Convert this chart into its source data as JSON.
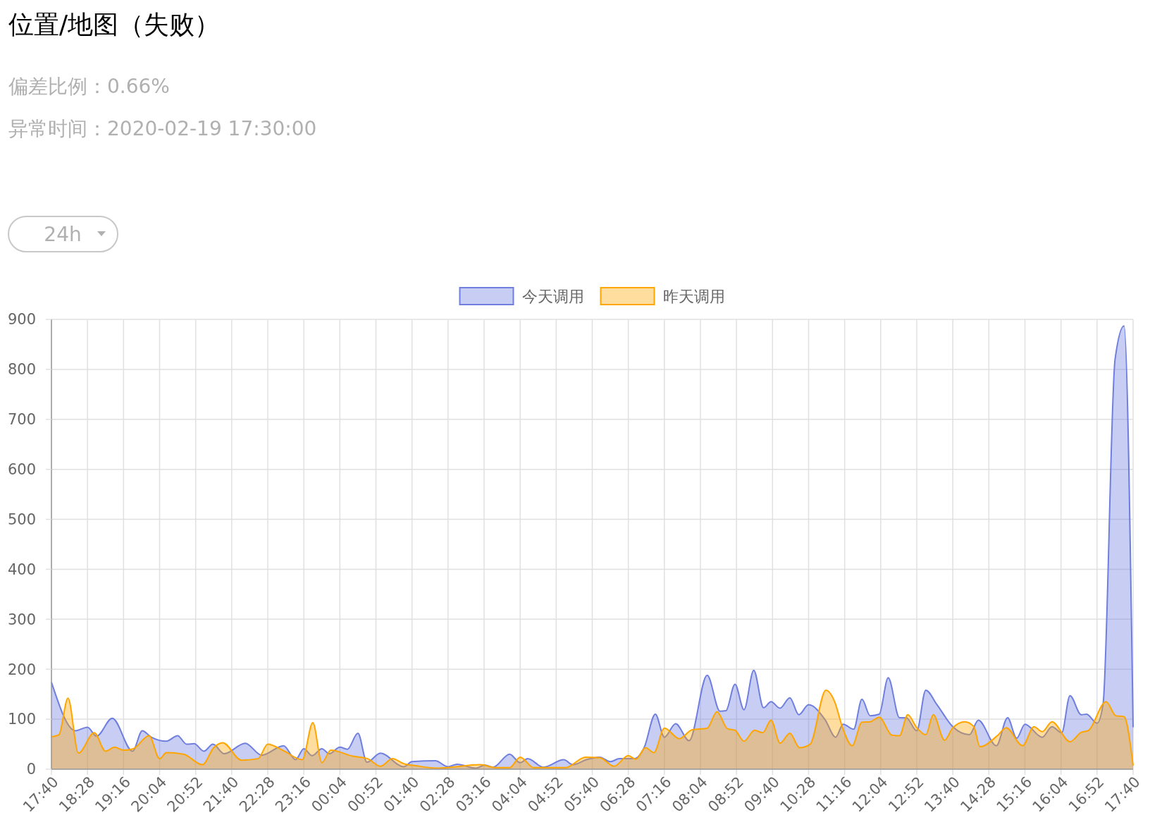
{
  "chart_data": {
    "type": "area",
    "title": "位置/地图（失败）",
    "subtitle": "偏差比例：0.66%",
    "annotations": [
      "异常时间：2020-02-19 17:30:00",
      "24h"
    ],
    "xlim": [
      "2020-02-18T17:40",
      "2020-02-19T17:40"
    ],
    "xticks": [
      {
        "value": "2020-02-18T17:40",
        "label": "17:40"
      },
      {
        "value": "2020-02-18T18:28",
        "label": "18:28"
      },
      {
        "value": "2020-02-18T19:16",
        "label": "19:16"
      },
      {
        "value": "2020-02-18T20:04",
        "label": "20:04"
      },
      {
        "value": "2020-02-18T20:52",
        "label": "20:52"
      },
      {
        "value": "2020-02-18T21:40",
        "label": "21:40"
      },
      {
        "value": "2020-02-18T22:28",
        "label": "22:28"
      },
      {
        "value": "2020-02-18T23:16",
        "label": "23:16"
      },
      {
        "value": "2020-02-19T00:04",
        "label": "00:04"
      },
      {
        "value": "2020-02-19T00:52",
        "label": "00:52"
      },
      {
        "value": "2020-02-19T01:40",
        "label": "01:40"
      },
      {
        "value": "2020-02-19T02:28",
        "label": "02:28"
      },
      {
        "value": "2020-02-19T03:16",
        "label": "03:16"
      },
      {
        "value": "2020-02-19T04:04",
        "label": "04:04"
      },
      {
        "value": "2020-02-19T04:52",
        "label": "04:52"
      },
      {
        "value": "2020-02-19T05:40",
        "label": "05:40"
      },
      {
        "value": "2020-02-19T06:28",
        "label": "06:28"
      },
      {
        "value": "2020-02-19T07:16",
        "label": "07:16"
      },
      {
        "value": "2020-02-19T08:04",
        "label": "08:04"
      },
      {
        "value": "2020-02-19T08:52",
        "label": "08:52"
      },
      {
        "value": "2020-02-19T09:40",
        "label": "09:40"
      },
      {
        "value": "2020-02-19T10:28",
        "label": "10:28"
      },
      {
        "value": "2020-02-19T11:16",
        "label": "11:16"
      },
      {
        "value": "2020-02-19T12:04",
        "label": "12:04"
      },
      {
        "value": "2020-02-19T12:52",
        "label": "12:52"
      },
      {
        "value": "2020-02-19T13:40",
        "label": "13:40"
      },
      {
        "value": "2020-02-19T14:28",
        "label": "14:28"
      },
      {
        "value": "2020-02-19T15:16",
        "label": "15:16"
      },
      {
        "value": "2020-02-19T16:04",
        "label": "16:04"
      },
      {
        "value": "2020-02-19T16:52",
        "label": "16:52"
      },
      {
        "value": "2020-02-19T17:40",
        "label": "17:40"
      }
    ],
    "ylim": [
      0,
      900
    ],
    "yticks": [
      0,
      100,
      200,
      300,
      400,
      500,
      600,
      700,
      800,
      900
    ],
    "grid": true,
    "legend": "top",
    "marker": "none",
    "series": [
      {
        "name": "今天调用",
        "color": "#6f7fdf",
        "x": [
          "2020-02-18T17:40",
          "2020-02-18T18:12",
          "2020-02-18T18:28",
          "2020-02-18T18:40",
          "2020-02-18T19:01",
          "2020-02-18T19:28",
          "2020-02-18T19:41",
          "2020-02-18T19:53",
          "2020-02-18T20:13",
          "2020-02-18T20:28",
          "2020-02-18T20:40",
          "2020-02-18T20:50",
          "2020-02-18T21:03",
          "2020-02-18T21:15",
          "2020-02-18T21:30",
          "2020-02-18T21:58",
          "2020-02-18T22:20",
          "2020-02-18T22:49",
          "2020-02-18T23:05",
          "2020-02-18T23:16",
          "2020-02-18T23:27",
          "2020-02-18T23:40",
          "2020-02-18T23:50",
          "2020-02-19T00:04",
          "2020-02-19T00:14",
          "2020-02-19T00:28",
          "2020-02-19T00:40",
          "2020-02-19T00:58",
          "2020-02-19T01:29",
          "2020-02-19T01:40",
          "2020-02-19T02:11",
          "2020-02-19T02:28",
          "2020-02-19T02:40",
          "2020-02-19T03:05",
          "2020-02-19T03:17",
          "2020-02-19T03:28",
          "2020-02-19T03:50",
          "2020-02-19T04:04",
          "2020-02-19T04:14",
          "2020-02-19T04:35",
          "2020-02-19T05:02",
          "2020-02-19T05:14",
          "2020-02-19T05:32",
          "2020-02-19T05:50",
          "2020-02-19T06:04",
          "2020-02-19T06:16",
          "2020-02-19T06:36",
          "2020-02-19T06:49",
          "2020-02-19T07:04",
          "2020-02-19T07:16",
          "2020-02-19T07:31",
          "2020-02-19T07:49",
          "2020-02-19T08:13",
          "2020-02-19T08:30",
          "2020-02-19T08:38",
          "2020-02-19T08:50",
          "2020-02-19T09:02",
          "2020-02-19T09:15",
          "2020-02-19T09:28",
          "2020-02-19T09:38",
          "2020-02-19T09:50",
          "2020-02-19T10:03",
          "2020-02-19T10:15",
          "2020-02-19T10:28",
          "2020-02-19T10:50",
          "2020-02-19T11:04",
          "2020-02-19T11:14",
          "2020-02-19T11:28",
          "2020-02-19T11:39",
          "2020-02-19T11:50",
          "2020-02-19T12:02",
          "2020-02-19T12:14",
          "2020-02-19T12:29",
          "2020-02-19T12:38",
          "2020-02-19T12:52",
          "2020-02-19T13:04",
          "2020-02-19T13:19",
          "2020-02-19T13:40",
          "2020-02-19T14:02",
          "2020-02-19T14:14",
          "2020-02-19T14:38",
          "2020-02-19T14:53",
          "2020-02-19T15:05",
          "2020-02-19T15:16",
          "2020-02-19T15:39",
          "2020-02-19T15:52",
          "2020-02-19T16:05",
          "2020-02-19T16:16",
          "2020-02-19T16:31",
          "2020-02-19T16:38",
          "2020-02-19T16:52",
          "2020-02-19T17:00",
          "2020-02-19T17:16",
          "2020-02-19T17:28",
          "2020-02-19T17:40"
        ],
        "values": [
          174,
          77,
          84,
          66,
          102,
          36,
          77,
          64,
          56,
          67,
          50,
          51,
          36,
          50,
          31,
          52,
          28,
          47,
          19,
          41,
          27,
          41,
          31,
          44,
          40,
          72,
          14,
          32,
          5,
          15,
          17,
          5,
          10,
          2,
          8,
          4,
          30,
          13,
          21,
          4,
          19,
          9,
          19,
          24,
          15,
          21,
          21,
          43,
          110,
          64,
          91,
          57,
          188,
          116,
          117,
          170,
          119,
          198,
          123,
          135,
          122,
          143,
          109,
          129,
          99,
          64,
          90,
          80,
          140,
          107,
          110,
          183,
          103,
          103,
          77,
          158,
          129,
          85,
          69,
          98,
          47,
          103,
          62,
          90,
          64,
          85,
          73,
          147,
          109,
          110,
          92,
          130,
          820,
          887,
          84
        ]
      },
      {
        "name": "昨天调用",
        "color": "#ffa500",
        "x": [
          "2020-02-18T17:40",
          "2020-02-18T17:50",
          "2020-02-18T18:02",
          "2020-02-18T18:16",
          "2020-02-18T18:37",
          "2020-02-18T18:52",
          "2020-02-18T19:04",
          "2020-02-18T19:16",
          "2020-02-18T19:29",
          "2020-02-18T19:50",
          "2020-02-18T20:04",
          "2020-02-18T20:13",
          "2020-02-18T20:36",
          "2020-02-18T21:01",
          "2020-02-18T21:16",
          "2020-02-18T21:28",
          "2020-02-18T21:53",
          "2020-02-18T22:15",
          "2020-02-18T22:28",
          "2020-02-18T22:49",
          "2020-02-18T23:14",
          "2020-02-18T23:28",
          "2020-02-18T23:40",
          "2020-02-18T23:52",
          "2020-02-19T00:21",
          "2020-02-19T00:41",
          "2020-02-19T00:58",
          "2020-02-19T01:14",
          "2020-02-19T01:29",
          "2020-02-19T01:45",
          "2020-02-19T02:15",
          "2020-02-19T03:11",
          "2020-02-19T03:32",
          "2020-02-19T03:50",
          "2020-02-19T04:04",
          "2020-02-19T04:22",
          "2020-02-19T05:04",
          "2020-02-19T05:31",
          "2020-02-19T05:50",
          "2020-02-19T06:09",
          "2020-02-19T06:28",
          "2020-02-19T06:38",
          "2020-02-19T06:51",
          "2020-02-19T07:02",
          "2020-02-19T07:16",
          "2020-02-19T07:36",
          "2020-02-19T07:53",
          "2020-02-19T08:13",
          "2020-02-19T08:26",
          "2020-02-19T08:40",
          "2020-02-19T08:50",
          "2020-02-19T09:02",
          "2020-02-19T09:16",
          "2020-02-19T09:27",
          "2020-02-19T09:38",
          "2020-02-19T09:50",
          "2020-02-19T10:03",
          "2020-02-19T10:16",
          "2020-02-19T10:30",
          "2020-02-19T10:51",
          "2020-02-19T11:03",
          "2020-02-19T11:13",
          "2020-02-19T11:26",
          "2020-02-19T11:39",
          "2020-02-19T11:50",
          "2020-02-19T12:02",
          "2020-02-19T12:19",
          "2020-02-19T12:29",
          "2020-02-19T12:40",
          "2020-02-19T12:52",
          "2020-02-19T13:04",
          "2020-02-19T13:14",
          "2020-02-19T13:29",
          "2020-02-19T13:40",
          "2020-02-19T13:56",
          "2020-02-19T14:08",
          "2020-02-19T14:16",
          "2020-02-19T14:40",
          "2020-02-19T14:51",
          "2020-02-19T15:13",
          "2020-02-19T15:28",
          "2020-02-19T15:39",
          "2020-02-19T15:52",
          "2020-02-19T16:16",
          "2020-02-19T16:31",
          "2020-02-19T16:40",
          "2020-02-19T17:04",
          "2020-02-19T17:17",
          "2020-02-19T17:28",
          "2020-02-19T17:40"
        ],
        "values": [
          65,
          69,
          142,
          32,
          73,
          36,
          44,
          38,
          41,
          67,
          21,
          33,
          30,
          9,
          43,
          53,
          18,
          21,
          50,
          37,
          19,
          93,
          13,
          38,
          26,
          21,
          6,
          21,
          11,
          7,
          2,
          9,
          3,
          3,
          24,
          3,
          3,
          24,
          23,
          6,
          27,
          20,
          43,
          33,
          82,
          61,
          79,
          82,
          115,
          81,
          78,
          56,
          78,
          73,
          98,
          52,
          72,
          43,
          50,
          158,
          134,
          84,
          47,
          94,
          95,
          104,
          68,
          67,
          109,
          83,
          69,
          109,
          58,
          83,
          95,
          85,
          45,
          68,
          83,
          47,
          85,
          75,
          95,
          55,
          74,
          77,
          135,
          107,
          105,
          7
        ]
      }
    ]
  }
}
